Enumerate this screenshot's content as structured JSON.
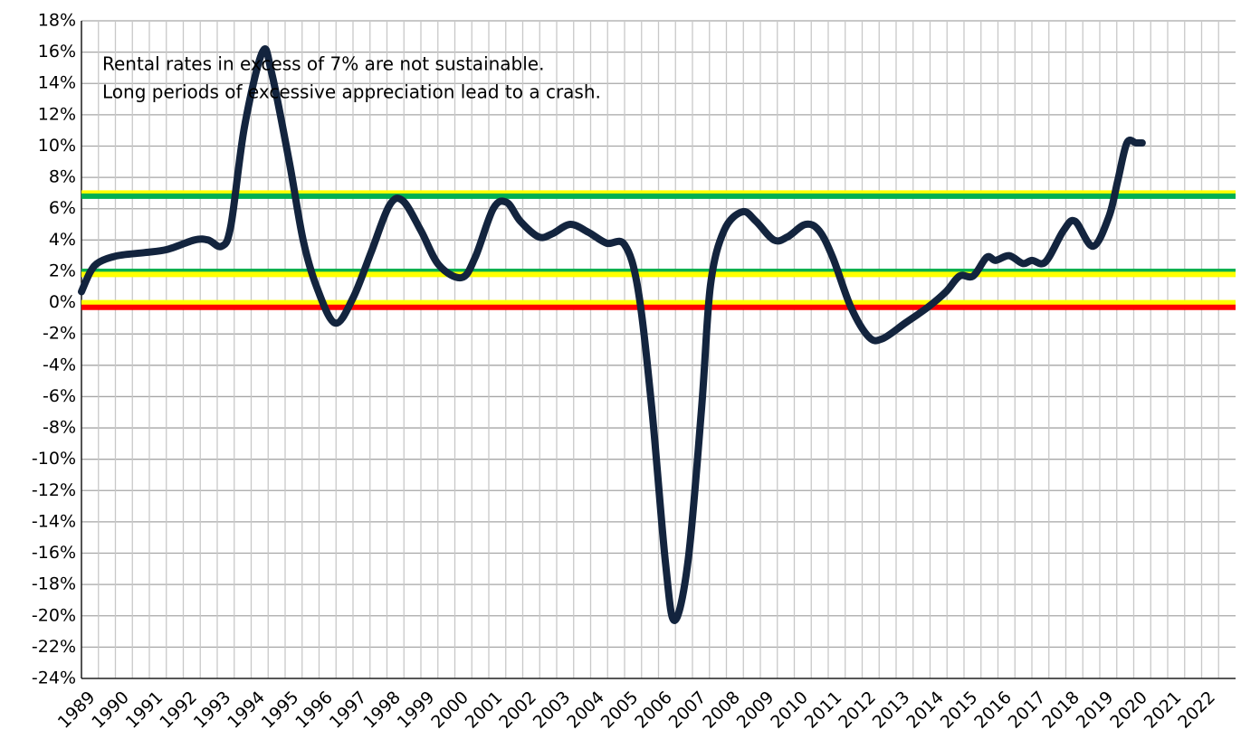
{
  "chart_data": {
    "type": "line",
    "annotations": [
      "Rental rates in excess of 7% are not sustainable.",
      "Long periods of excessive appreciation lead to a crash."
    ],
    "x": [
      1989.0,
      1989.27,
      1989.53,
      1990.07,
      1990.87,
      1991.53,
      1992.33,
      1992.73,
      1993.13,
      1993.4,
      1993.8,
      1994.33,
      1994.6,
      1995.13,
      1995.53,
      1995.93,
      1996.47,
      1997.0,
      1997.53,
      1998.07,
      1998.47,
      1999.0,
      1999.53,
      2000.2,
      2000.6,
      2001.13,
      2001.53,
      2001.93,
      2002.47,
      2002.87,
      2003.4,
      2003.93,
      2004.47,
      2005.0,
      2005.4,
      2005.8,
      2006.2,
      2006.47,
      2006.87,
      2007.27,
      2007.53,
      2007.93,
      2008.47,
      2008.87,
      2009.4,
      2009.8,
      2010.33,
      2010.73,
      2011.13,
      2011.67,
      2012.2,
      2012.6,
      2013.27,
      2013.93,
      2014.47,
      2014.87,
      2015.27,
      2015.67,
      2015.93,
      2016.33,
      2016.73,
      2017.0,
      2017.4,
      2017.93,
      2018.27,
      2018.8,
      2019.27,
      2019.53,
      2019.8,
      2020.07,
      2020.25
    ],
    "series": [
      {
        "color": "#13243e",
        "values": [
          0.7,
          2.0,
          2.6,
          3.0,
          3.2,
          3.4,
          4.0,
          4.0,
          3.6,
          4.9,
          11.2,
          16.0,
          14.7,
          8.9,
          4.0,
          1.0,
          -1.3,
          0.3,
          3.2,
          6.2,
          6.5,
          4.6,
          2.4,
          1.6,
          2.9,
          6.0,
          6.4,
          5.2,
          4.2,
          4.4,
          5.0,
          4.5,
          3.8,
          3.7,
          0.8,
          -6.7,
          -16.5,
          -20.3,
          -16.5,
          -6.7,
          1.1,
          4.6,
          5.8,
          5.2,
          4.0,
          4.2,
          5.0,
          4.6,
          2.9,
          -0.3,
          -2.2,
          -2.3,
          -1.3,
          -0.3,
          0.7,
          1.7,
          1.7,
          2.9,
          2.7,
          3.0,
          2.5,
          2.7,
          2.6,
          4.6,
          5.2,
          3.6,
          5.5,
          7.8,
          10.2,
          10.2,
          10.2
        ]
      }
    ],
    "reference_lines": [
      {
        "value": 7,
        "color": "#ffff00"
      },
      {
        "value": 6.8,
        "color": "#00b050"
      },
      {
        "value": 2,
        "color": "#00b050"
      },
      {
        "value": 1.8,
        "color": "#ffff00"
      },
      {
        "value": 0,
        "color": "#ffff00"
      },
      {
        "value": -0.3,
        "color": "#ff0000"
      }
    ],
    "xlim": [
      1989,
      2023
    ],
    "xticks": [
      1989,
      1990,
      1991,
      1992,
      1993,
      1994,
      1995,
      1996,
      1997,
      1998,
      1999,
      2000,
      2001,
      2002,
      2003,
      2004,
      2005,
      2006,
      2007,
      2008,
      2009,
      2010,
      2011,
      2012,
      2013,
      2014,
      2015,
      2016,
      2017,
      2018,
      2019,
      2020,
      2021,
      2022
    ],
    "ylim": [
      -24,
      18
    ],
    "yticks": [
      {
        "value": 18,
        "label": "18%"
      },
      {
        "value": 16,
        "label": "16%"
      },
      {
        "value": 14,
        "label": "14%"
      },
      {
        "value": 12,
        "label": "12%"
      },
      {
        "value": 10,
        "label": "10%"
      },
      {
        "value": 8,
        "label": "8%"
      },
      {
        "value": 6,
        "label": "6%"
      },
      {
        "value": 4,
        "label": "4%"
      },
      {
        "value": 2,
        "label": "2%"
      },
      {
        "value": 0,
        "label": "0%"
      },
      {
        "value": -2,
        "label": "-2%"
      },
      {
        "value": -4,
        "label": "-4%"
      },
      {
        "value": -6,
        "label": "-6%"
      },
      {
        "value": -8,
        "label": "-8%"
      },
      {
        "value": -10,
        "label": "-10%"
      },
      {
        "value": -12,
        "label": "-12%"
      },
      {
        "value": -14,
        "label": "-14%"
      },
      {
        "value": -16,
        "label": "-16%"
      },
      {
        "value": -18,
        "label": "-18%"
      },
      {
        "value": -20,
        "label": "-20%"
      },
      {
        "value": -22,
        "label": "-22%"
      },
      {
        "value": -24,
        "label": "-24%"
      }
    ],
    "grid": true
  }
}
